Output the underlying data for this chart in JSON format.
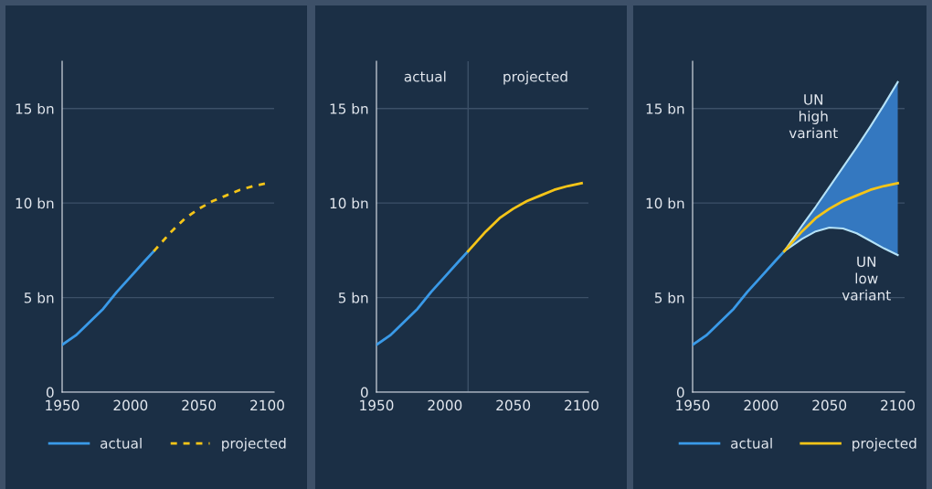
{
  "chart_data": [
    {
      "type": "line",
      "xlim": [
        1950,
        2105
      ],
      "ylim": [
        0,
        17.5
      ],
      "xticks": [
        1950,
        2000,
        2050,
        2100
      ],
      "yticks": [
        {
          "value": 0,
          "label": "0"
        },
        {
          "value": 5,
          "label": "5 bn"
        },
        {
          "value": 10,
          "label": "10 bn"
        },
        {
          "value": 15,
          "label": "15 bn"
        }
      ],
      "grid": "y",
      "legend": "bottom",
      "series": [
        {
          "name": "actual",
          "color": "#3a9ae8",
          "line_style": "solid",
          "x": [
            1950,
            1960,
            1970,
            1980,
            1990,
            2000,
            2010,
            2017
          ],
          "values": [
            2.5,
            3.0,
            3.7,
            4.4,
            5.3,
            6.1,
            6.9,
            7.45
          ]
        },
        {
          "name": "projected",
          "color": "#f5c518",
          "line_style": "dashed",
          "x": [
            2017,
            2030,
            2040,
            2050,
            2060,
            2070,
            2080,
            2090,
            2100
          ],
          "values": [
            7.45,
            8.5,
            9.2,
            9.7,
            10.1,
            10.4,
            10.7,
            10.9,
            11.05
          ]
        }
      ]
    },
    {
      "type": "line",
      "xlim": [
        1950,
        2105
      ],
      "ylim": [
        0,
        17.5
      ],
      "xticks": [
        1950,
        2000,
        2050,
        2100
      ],
      "yticks": [
        {
          "value": 0,
          "label": "0"
        },
        {
          "value": 5,
          "label": "5 bn"
        },
        {
          "value": 10,
          "label": "10 bn"
        },
        {
          "value": 15,
          "label": "15 bn"
        }
      ],
      "grid": "y",
      "legend": false,
      "ref_lines": [
        {
          "axis": "x",
          "value": 2017,
          "color": "#3c5068"
        }
      ],
      "annotations": [
        "actual",
        "projected"
      ],
      "series": [
        {
          "color": "#3a9ae8",
          "line_style": "solid",
          "x": [
            1950,
            1960,
            1970,
            1980,
            1990,
            2000,
            2010,
            2017
          ],
          "values": [
            2.5,
            3.0,
            3.7,
            4.4,
            5.3,
            6.1,
            6.9,
            7.45
          ]
        },
        {
          "color": "#f5c518",
          "line_style": "solid",
          "x": [
            2017,
            2030,
            2040,
            2050,
            2060,
            2070,
            2080,
            2090,
            2100
          ],
          "values": [
            7.45,
            8.5,
            9.2,
            9.7,
            10.1,
            10.4,
            10.7,
            10.9,
            11.05
          ]
        }
      ]
    },
    {
      "type": "line",
      "xlim": [
        1950,
        2105
      ],
      "ylim": [
        0,
        17.5
      ],
      "xticks": [
        1950,
        2000,
        2050,
        2100
      ],
      "yticks": [
        {
          "value": 0,
          "label": "0"
        },
        {
          "value": 5,
          "label": "5 bn"
        },
        {
          "value": 10,
          "label": "10 bn"
        },
        {
          "value": 15,
          "label": "15 bn"
        }
      ],
      "grid": "y",
      "legend": "bottom",
      "annotations": [
        "UN\nhigh\nvariant",
        "UN\nlow\nvariant"
      ],
      "series": [
        {
          "name": "actual",
          "color": "#3a9ae8",
          "line_style": "solid",
          "x": [
            1950,
            1960,
            1970,
            1980,
            1990,
            2000,
            2010,
            2017
          ],
          "values": [
            2.5,
            3.0,
            3.7,
            4.4,
            5.3,
            6.1,
            6.9,
            7.45
          ]
        },
        {
          "name": "projected",
          "color": "#f5c518",
          "line_style": "solid",
          "x": [
            2017,
            2030,
            2040,
            2050,
            2060,
            2070,
            2080,
            2090,
            2100
          ],
          "values": [
            7.45,
            8.5,
            9.2,
            9.7,
            10.1,
            10.4,
            10.7,
            10.9,
            11.05
          ],
          "lower": [
            7.45,
            8.1,
            8.5,
            8.7,
            8.65,
            8.4,
            8.0,
            7.6,
            7.25
          ],
          "upper": [
            7.45,
            8.8,
            9.8,
            10.85,
            11.9,
            12.95,
            14.05,
            15.2,
            16.4
          ]
        },
        {
          "color": "#b5e2f7",
          "line_style": "solid",
          "x": [
            2017,
            2030,
            2040,
            2050,
            2060,
            2070,
            2080,
            2090,
            2100
          ],
          "values": [
            7.45,
            8.8,
            9.8,
            10.85,
            11.9,
            12.95,
            14.05,
            15.2,
            16.4
          ]
        },
        {
          "color": "#b5e2f7",
          "line_style": "solid",
          "x": [
            2017,
            2030,
            2040,
            2050,
            2060,
            2070,
            2080,
            2090,
            2100
          ],
          "values": [
            7.45,
            8.1,
            8.5,
            8.7,
            8.65,
            8.4,
            8.0,
            7.6,
            7.25
          ]
        }
      ]
    }
  ]
}
